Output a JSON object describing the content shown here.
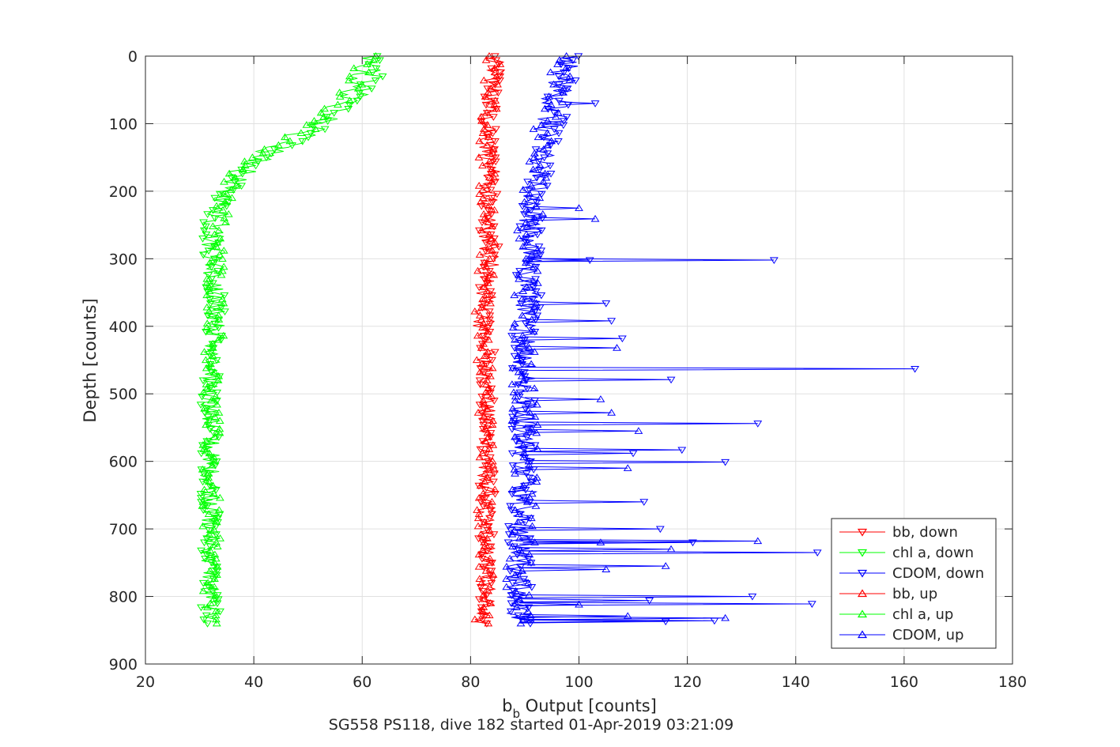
{
  "chart_data": {
    "type": "line",
    "title": "",
    "xlabel": "b",
    "xlabel_subscript": "b",
    "xlabel_suffix": " Output [counts]",
    "ylabel": "Depth [counts]",
    "caption": "SG558 PS118, dive 182 started 01-Apr-2019 03:21:09",
    "xlim": [
      20,
      180
    ],
    "ylim": [
      0,
      900
    ],
    "y_reversed": true,
    "grid": true,
    "xticks": [
      20,
      40,
      60,
      80,
      100,
      120,
      140,
      160,
      180
    ],
    "yticks": [
      0,
      100,
      200,
      300,
      400,
      500,
      600,
      700,
      800,
      900
    ],
    "legend_position": "bottom-right",
    "series": [
      {
        "name": "bb, down",
        "color": "#ff0000",
        "marker": "triangle-down",
        "x": [
          84,
          85,
          84,
          83,
          84,
          84,
          83,
          84,
          83,
          83,
          83,
          83,
          83,
          83,
          83,
          83,
          83,
          83,
          83,
          83,
          83,
          83,
          83,
          83,
          83,
          82,
          82
        ],
        "y": [
          0,
          20,
          50,
          100,
          150,
          200,
          250,
          300,
          350,
          400,
          450,
          480,
          500,
          550,
          600,
          620,
          650,
          700,
          720,
          750,
          770,
          790,
          800,
          810,
          820,
          830,
          840
        ]
      },
      {
        "name": "chl a, down",
        "color": "#00ff00",
        "marker": "triangle-down",
        "x": [
          63,
          62,
          58,
          53,
          47,
          40,
          35,
          32,
          32,
          33,
          33,
          32,
          32,
          32,
          32,
          32,
          32,
          32,
          32
        ],
        "y": [
          0,
          30,
          70,
          100,
          130,
          160,
          200,
          250,
          300,
          350,
          400,
          450,
          500,
          550,
          600,
          650,
          700,
          750,
          840
        ]
      },
      {
        "name": "CDOM, down",
        "color": "#0000ff",
        "marker": "triangle-down",
        "x": [
          98,
          97,
          95,
          93,
          92,
          91,
          91,
          90,
          91,
          90,
          90,
          90,
          90,
          90,
          90,
          90,
          90,
          89,
          89,
          89,
          89
        ],
        "y": [
          0,
          50,
          100,
          150,
          200,
          250,
          300,
          302,
          350,
          400,
          462,
          463,
          500,
          544,
          550,
          600,
          650,
          700,
          750,
          800,
          840
        ]
      },
      {
        "name": "bb, up",
        "color": "#ff0000",
        "marker": "triangle-up",
        "x": [
          84,
          84,
          83,
          83,
          83,
          82,
          83,
          83,
          83,
          83,
          82,
          83,
          83,
          82
        ],
        "y": [
          0,
          50,
          100,
          200,
          300,
          400,
          500,
          550,
          600,
          650,
          700,
          750,
          800,
          840
        ]
      },
      {
        "name": "chl a, up",
        "color": "#00ff00",
        "marker": "triangle-up",
        "x": [
          61,
          58,
          52,
          44,
          37,
          34,
          33,
          33,
          32,
          32,
          32,
          32,
          32,
          32
        ],
        "y": [
          0,
          50,
          100,
          130,
          170,
          220,
          300,
          400,
          500,
          600,
          650,
          700,
          800,
          840
        ]
      },
      {
        "name": "CDOM, up",
        "color": "#0000ff",
        "marker": "triangle-up",
        "x": [
          98,
          96,
          94,
          92,
          92,
          91,
          91,
          90,
          90,
          90,
          90,
          89,
          89,
          89
        ],
        "y": [
          0,
          50,
          100,
          150,
          200,
          250,
          300,
          400,
          500,
          600,
          700,
          750,
          800,
          840
        ]
      }
    ],
    "spikes_down": [
      {
        "x": 136,
        "y": 302
      },
      {
        "x": 162,
        "y": 463
      },
      {
        "x": 117,
        "y": 479
      },
      {
        "x": 133,
        "y": 544
      },
      {
        "x": 119,
        "y": 583
      },
      {
        "x": 127,
        "y": 601
      },
      {
        "x": 144,
        "y": 735
      },
      {
        "x": 143,
        "y": 811
      },
      {
        "x": 116,
        "y": 837
      },
      {
        "x": 112,
        "y": 660
      },
      {
        "x": 115,
        "y": 700
      },
      {
        "x": 108,
        "y": 418
      },
      {
        "x": 103,
        "y": 70
      },
      {
        "x": 106,
        "y": 392
      },
      {
        "x": 105,
        "y": 366
      },
      {
        "x": 110,
        "y": 588
      },
      {
        "x": 102,
        "y": 302
      },
      {
        "x": 121,
        "y": 720
      },
      {
        "x": 132,
        "y": 800
      },
      {
        "x": 113,
        "y": 806
      },
      {
        "x": 125,
        "y": 836
      }
    ],
    "spikes_up": [
      {
        "x": 133,
        "y": 718
      },
      {
        "x": 117,
        "y": 730
      },
      {
        "x": 127,
        "y": 832
      },
      {
        "x": 109,
        "y": 829
      },
      {
        "x": 111,
        "y": 555
      },
      {
        "x": 107,
        "y": 432
      },
      {
        "x": 103,
        "y": 241
      },
      {
        "x": 100,
        "y": 225
      },
      {
        "x": 104,
        "y": 508
      },
      {
        "x": 106,
        "y": 528
      },
      {
        "x": 116,
        "y": 755
      },
      {
        "x": 104,
        "y": 720
      },
      {
        "x": 105,
        "y": 760
      },
      {
        "x": 100,
        "y": 812
      },
      {
        "x": 109,
        "y": 610
      }
    ]
  }
}
